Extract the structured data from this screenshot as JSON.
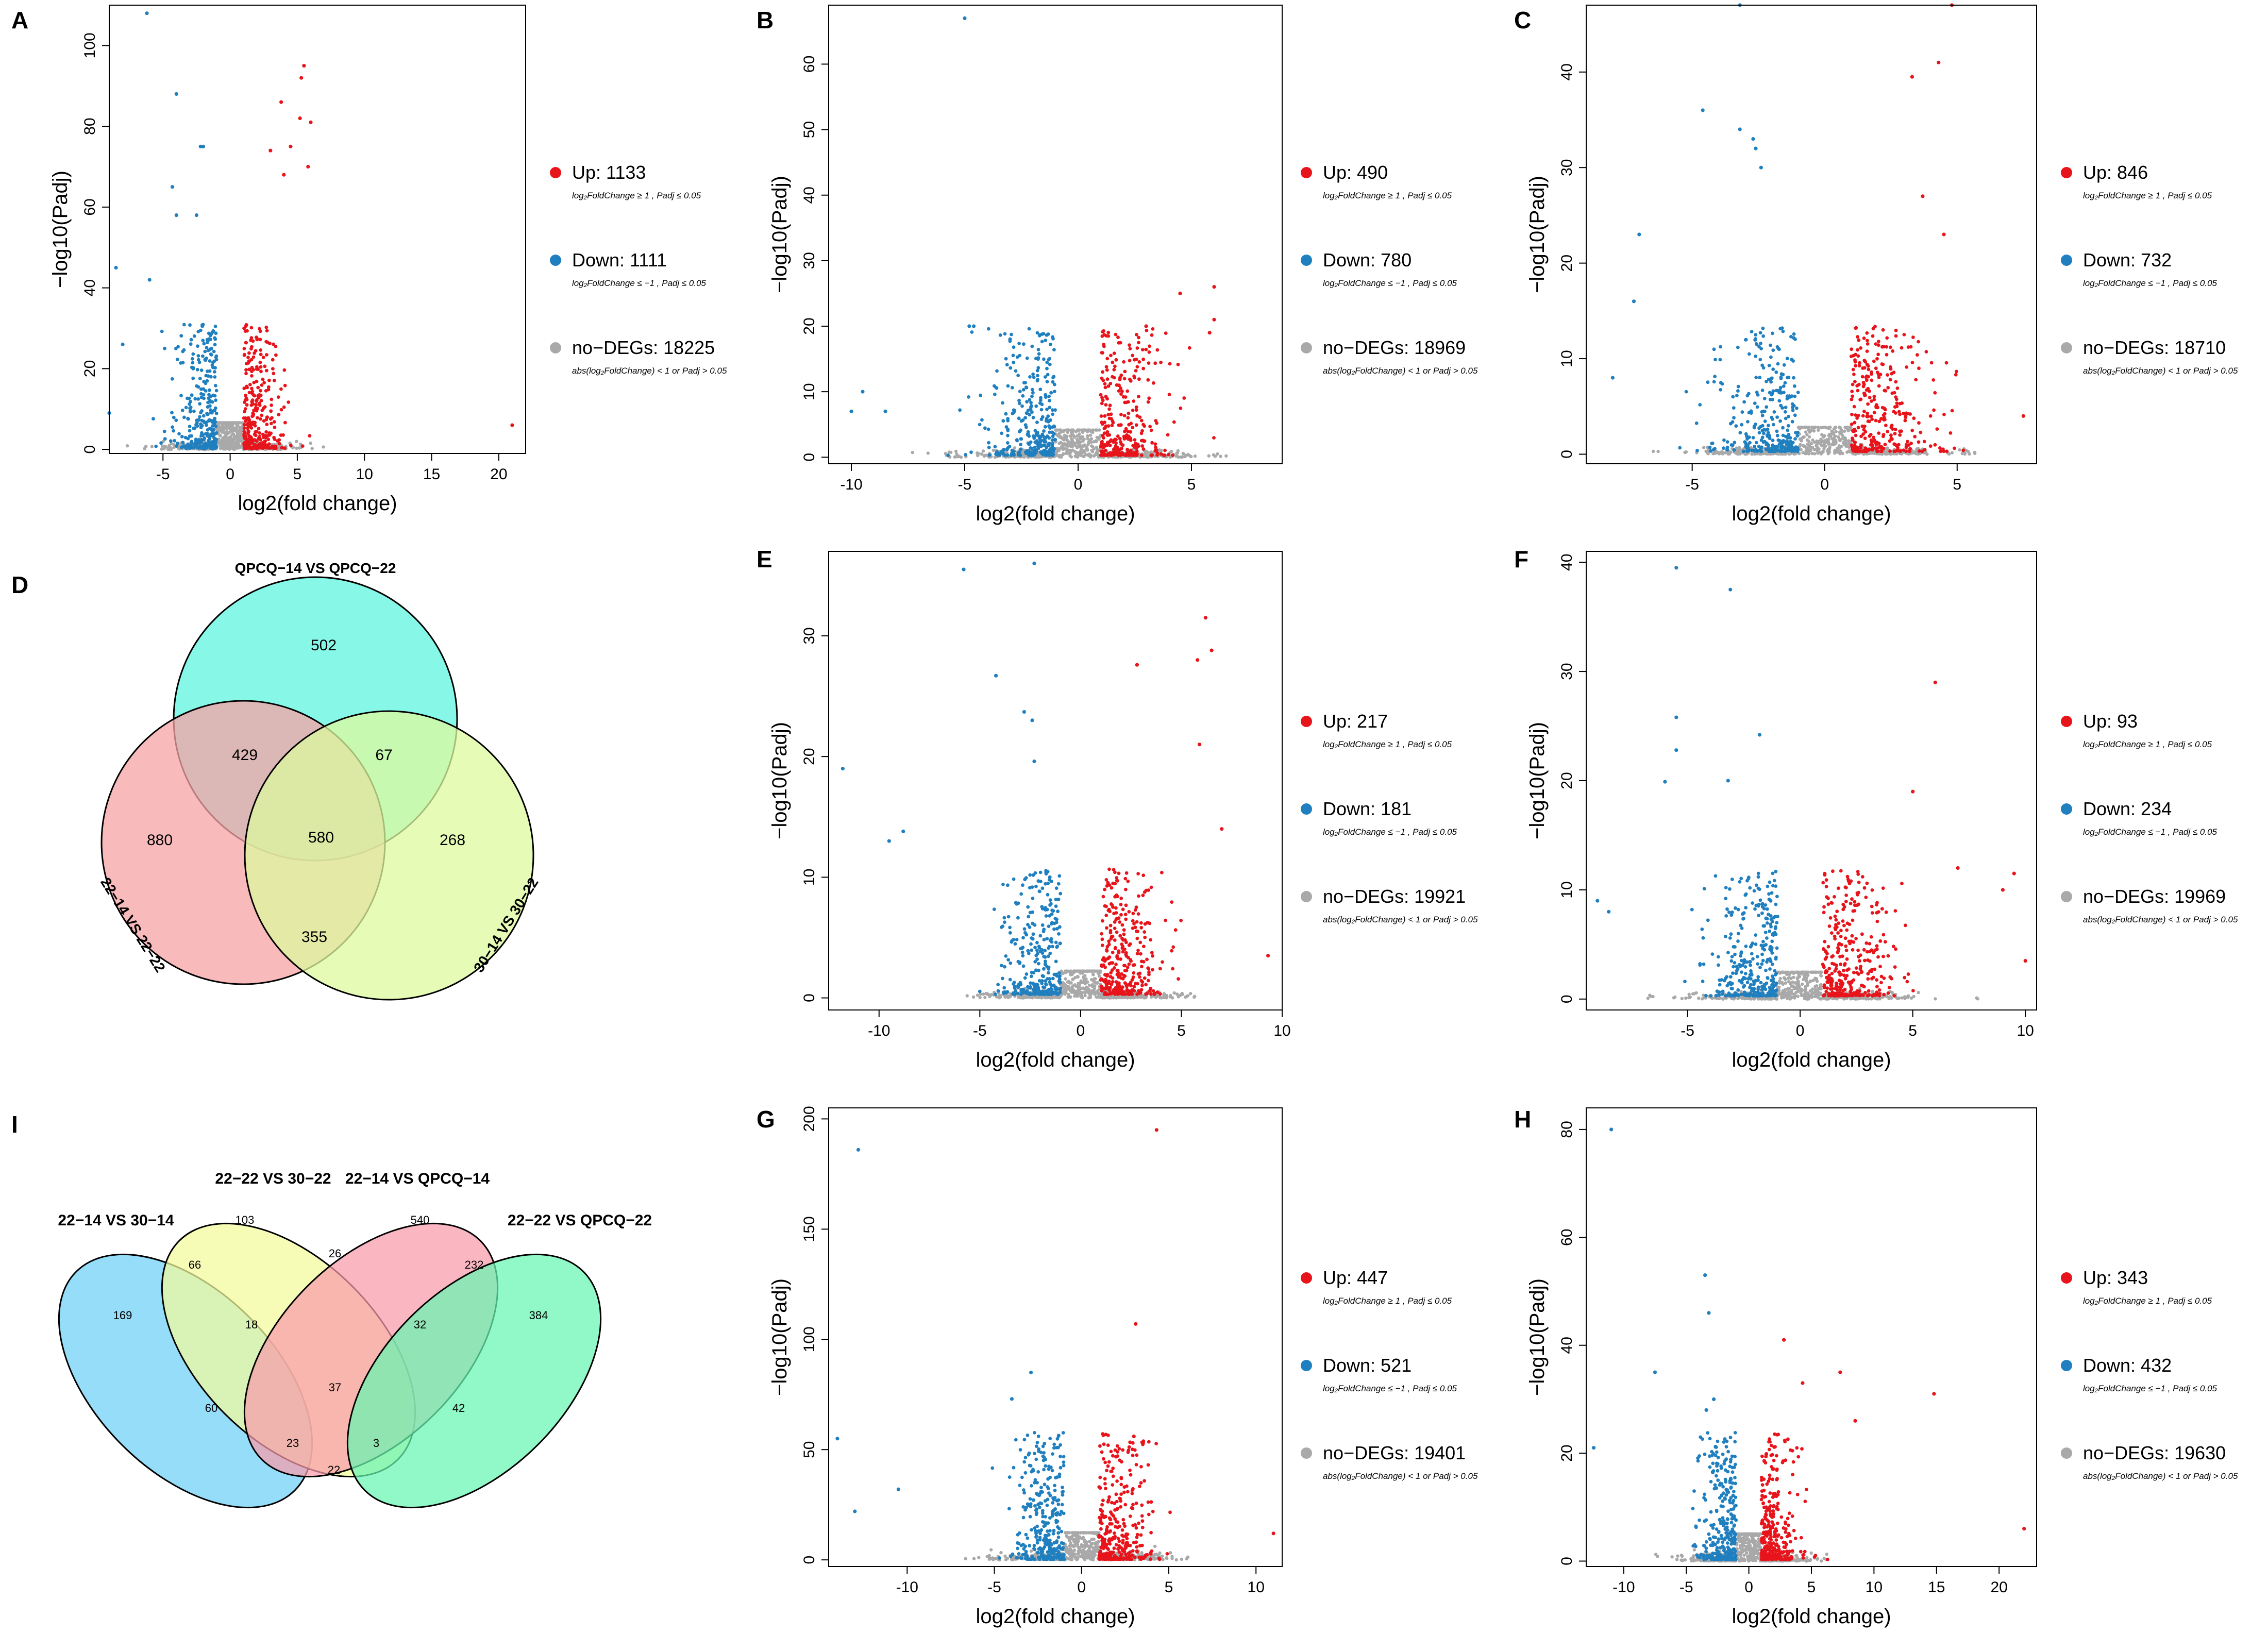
{
  "figure": {
    "colors": {
      "up": "#e8141b",
      "down": "#1f7fbf",
      "nodeg": "#a9a9a9"
    },
    "shared": {
      "xlabel": "log2(fold change)",
      "ylabel": "−log10(Padj)"
    },
    "panel_letters": {
      "A": "A",
      "B": "B",
      "C": "C",
      "D": "D",
      "E": "E",
      "F": "F",
      "G": "G",
      "H": "H",
      "I": "I"
    }
  },
  "chart_data": [
    {
      "id": "A",
      "type": "scatter",
      "subtype": "volcano",
      "xlabel": "log2(fold change)",
      "ylabel": "−log10(Padj)",
      "xlim": [
        -9,
        22
      ],
      "ylim": [
        -1,
        110
      ],
      "xticks": [
        -5,
        0,
        5,
        10,
        15,
        20
      ],
      "yticks": [
        0,
        20,
        40,
        60,
        80,
        100
      ],
      "tick_labels_x": [
        "-5",
        "0",
        "5",
        "10",
        "15",
        "20"
      ],
      "tick_labels_y": [
        "0",
        "20",
        "40",
        "60",
        "80",
        "100"
      ],
      "legend": [
        {
          "key": "up",
          "label": "Up: 1133",
          "rule": "log₂FoldChange ≥ 1 , Padj ≤ 0.05"
        },
        {
          "key": "down",
          "label": "Down: 1111",
          "rule": "log₂FoldChange ≤ −1 , Padj ≤ 0.05"
        },
        {
          "key": "nodeg",
          "label": "no−DEGs: 18225",
          "rule": "abs(log₂FoldChange) < 1  or Padj > 0.05"
        }
      ],
      "series": [
        {
          "name": "Up",
          "color_key": "up",
          "count": 1133
        },
        {
          "name": "Down",
          "color_key": "down",
          "count": 1111
        },
        {
          "name": "no-DEGs",
          "color_key": "nodeg",
          "count": 18225
        }
      ],
      "outliers": [
        [
          -6.2,
          108
        ],
        [
          -4,
          88
        ],
        [
          -2.2,
          75
        ],
        [
          -2,
          75
        ],
        [
          -4.3,
          65
        ],
        [
          -4,
          58
        ],
        [
          -2.5,
          58
        ],
        [
          -8.5,
          45
        ],
        [
          -6,
          42
        ],
        [
          5.5,
          95
        ],
        [
          5.3,
          92
        ],
        [
          3.8,
          86
        ],
        [
          5.2,
          82
        ],
        [
          6,
          81
        ],
        [
          4.5,
          75
        ],
        [
          3,
          74
        ],
        [
          5.8,
          70
        ],
        [
          4,
          68
        ],
        [
          21,
          6
        ],
        [
          -8,
          26
        ],
        [
          -9,
          9
        ]
      ]
    },
    {
      "id": "B",
      "type": "scatter",
      "subtype": "volcano",
      "xlabel": "log2(fold change)",
      "ylabel": "−log10(Padj)",
      "xlim": [
        -11,
        9
      ],
      "ylim": [
        -1,
        69
      ],
      "xticks": [
        -10,
        -5,
        0,
        5
      ],
      "yticks": [
        0,
        10,
        20,
        30,
        40,
        50,
        60
      ],
      "tick_labels_x": [
        "-10",
        "-5",
        "0",
        "5"
      ],
      "tick_labels_y": [
        "0",
        "10",
        "20",
        "30",
        "40",
        "50",
        "60"
      ],
      "legend": [
        {
          "key": "up",
          "label": "Up: 490",
          "rule": "log₂FoldChange ≥ 1 , Padj ≤ 0.05"
        },
        {
          "key": "down",
          "label": "Down: 780",
          "rule": "log₂FoldChange ≤ −1 , Padj ≤ 0.05"
        },
        {
          "key": "nodeg",
          "label": "no−DEGs: 18969",
          "rule": "abs(log₂FoldChange) < 1  or Padj > 0.05"
        }
      ],
      "series": [
        {
          "name": "Up",
          "color_key": "up",
          "count": 490
        },
        {
          "name": "Down",
          "color_key": "down",
          "count": 780
        },
        {
          "name": "no-DEGs",
          "color_key": "nodeg",
          "count": 18969
        }
      ],
      "outliers": [
        [
          -5,
          67
        ],
        [
          -4.8,
          20
        ],
        [
          -4.6,
          20
        ],
        [
          -9.5,
          10
        ],
        [
          -10,
          7
        ],
        [
          -8.5,
          7
        ],
        [
          6,
          26
        ],
        [
          4.5,
          25
        ],
        [
          6,
          21
        ],
        [
          5.8,
          19
        ],
        [
          3,
          20
        ],
        [
          -3,
          18
        ]
      ]
    },
    {
      "id": "C",
      "type": "scatter",
      "subtype": "volcano",
      "xlabel": "log2(fold change)",
      "ylabel": "−log10(Padj)",
      "xlim": [
        -9,
        8
      ],
      "ylim": [
        -1,
        47
      ],
      "xticks": [
        -5,
        0,
        5
      ],
      "yticks": [
        0,
        10,
        20,
        30,
        40
      ],
      "tick_labels_x": [
        "-5",
        "0",
        "5"
      ],
      "tick_labels_y": [
        "0",
        "10",
        "20",
        "30",
        "40"
      ],
      "legend": [
        {
          "key": "up",
          "label": "Up: 846",
          "rule": "log₂FoldChange ≥ 1 , Padj ≤ 0.05"
        },
        {
          "key": "down",
          "label": "Down: 732",
          "rule": "log₂FoldChange ≤ −1 , Padj ≤ 0.05"
        },
        {
          "key": "nodeg",
          "label": "no−DEGs: 18710",
          "rule": "abs(log₂FoldChange) < 1  or Padj > 0.05"
        }
      ],
      "series": [
        {
          "name": "Up",
          "color_key": "up",
          "count": 846
        },
        {
          "name": "Down",
          "color_key": "down",
          "count": 732
        },
        {
          "name": "no-DEGs",
          "color_key": "nodeg",
          "count": 18710
        }
      ],
      "outliers": [
        [
          -3.2,
          47
        ],
        [
          4.8,
          47
        ],
        [
          4.3,
          41
        ],
        [
          3.3,
          39.5
        ],
        [
          -4.6,
          36
        ],
        [
          -3.2,
          34
        ],
        [
          -2.7,
          33
        ],
        [
          -2.6,
          32
        ],
        [
          -2.4,
          30
        ],
        [
          -7,
          23
        ],
        [
          -7.2,
          16
        ],
        [
          -8,
          8
        ],
        [
          3.7,
          27
        ],
        [
          4.5,
          23
        ],
        [
          7.5,
          4
        ]
      ]
    },
    {
      "id": "E",
      "type": "scatter",
      "subtype": "volcano",
      "xlabel": "log2(fold change)",
      "ylabel": "−log10(Padj)",
      "xlim": [
        -12.5,
        10
      ],
      "ylim": [
        -1,
        37
      ],
      "xticks": [
        -10,
        -5,
        0,
        5,
        10
      ],
      "yticks": [
        0,
        10,
        20,
        30
      ],
      "tick_labels_x": [
        "-10",
        "-5",
        "0",
        "5",
        "10"
      ],
      "tick_labels_y": [
        "0",
        "10",
        "20",
        "30"
      ],
      "legend": [
        {
          "key": "up",
          "label": "Up: 217",
          "rule": "log₂FoldChange ≥ 1 , Padj ≤ 0.05"
        },
        {
          "key": "down",
          "label": "Down: 181",
          "rule": "log₂FoldChange ≤ −1 , Padj ≤ 0.05"
        },
        {
          "key": "nodeg",
          "label": "no−DEGs: 19921",
          "rule": "abs(log₂FoldChange) < 1  or Padj > 0.05"
        }
      ],
      "series": [
        {
          "name": "Up",
          "color_key": "up",
          "count": 217
        },
        {
          "name": "Down",
          "color_key": "down",
          "count": 181
        },
        {
          "name": "no-DEGs",
          "color_key": "nodeg",
          "count": 19921
        }
      ],
      "outliers": [
        [
          -5.8,
          35.5
        ],
        [
          -2.3,
          36
        ],
        [
          -4.2,
          26.7
        ],
        [
          -2.8,
          23.7
        ],
        [
          -2.4,
          23
        ],
        [
          -2.3,
          19.6
        ],
        [
          -11.8,
          19
        ],
        [
          -9.5,
          13
        ],
        [
          -8.8,
          13.8
        ],
        [
          6.2,
          31.5
        ],
        [
          6.5,
          28.8
        ],
        [
          2.8,
          27.6
        ],
        [
          5.8,
          28
        ],
        [
          5.9,
          21
        ],
        [
          7,
          14
        ],
        [
          9.3,
          3.5
        ]
      ]
    },
    {
      "id": "F",
      "type": "scatter",
      "subtype": "volcano",
      "xlabel": "log2(fold change)",
      "ylabel": "−log10(Padj)",
      "xlim": [
        -9.5,
        10.5
      ],
      "ylim": [
        -1,
        41
      ],
      "xticks": [
        -5,
        0,
        5,
        10
      ],
      "yticks": [
        0,
        10,
        20,
        30,
        40
      ],
      "tick_labels_x": [
        "-5",
        "0",
        "5",
        "10"
      ],
      "tick_labels_y": [
        "0",
        "10",
        "20",
        "30",
        "40"
      ],
      "legend": [
        {
          "key": "up",
          "label": "Up: 93",
          "rule": "log₂FoldChange ≥ 1 , Padj ≤ 0.05"
        },
        {
          "key": "down",
          "label": "Down: 234",
          "rule": "log₂FoldChange ≤ −1 , Padj ≤ 0.05"
        },
        {
          "key": "nodeg",
          "label": "no−DEGs: 19969",
          "rule": "abs(log₂FoldChange) < 1  or Padj > 0.05"
        }
      ],
      "series": [
        {
          "name": "Up",
          "color_key": "up",
          "count": 93
        },
        {
          "name": "Down",
          "color_key": "down",
          "count": 234
        },
        {
          "name": "no-DEGs",
          "color_key": "nodeg",
          "count": 19969
        }
      ],
      "outliers": [
        [
          -5.5,
          39.5
        ],
        [
          -3.1,
          37.5
        ],
        [
          -5.5,
          25.8
        ],
        [
          -5.5,
          22.8
        ],
        [
          -1.8,
          24.2
        ],
        [
          -6,
          19.9
        ],
        [
          -3.2,
          20
        ],
        [
          -9,
          9
        ],
        [
          -8.5,
          8
        ],
        [
          6,
          29
        ],
        [
          5,
          19
        ],
        [
          9.5,
          11.5
        ],
        [
          9,
          10
        ],
        [
          10,
          3.5
        ],
        [
          7,
          12
        ]
      ]
    },
    {
      "id": "G",
      "type": "scatter",
      "subtype": "volcano",
      "xlabel": "log2(fold change)",
      "ylabel": "−log10(Padj)",
      "xlim": [
        -14.5,
        11.5
      ],
      "ylim": [
        -3,
        205
      ],
      "xticks": [
        -10,
        -5,
        0,
        5,
        10
      ],
      "yticks": [
        0,
        50,
        100,
        150,
        200
      ],
      "tick_labels_x": [
        "-10",
        "-5",
        "0",
        "5",
        "10"
      ],
      "tick_labels_y": [
        "0",
        "50",
        "100",
        "150",
        "200"
      ],
      "legend": [
        {
          "key": "up",
          "label": "Up: 447",
          "rule": "log₂FoldChange ≥ 1 , Padj ≤ 0.05"
        },
        {
          "key": "down",
          "label": "Down: 521",
          "rule": "log₂FoldChange ≤ −1 , Padj ≤ 0.05"
        },
        {
          "key": "nodeg",
          "label": "no−DEGs: 19401",
          "rule": "abs(log₂FoldChange) < 1  or Padj > 0.05"
        }
      ],
      "series": [
        {
          "name": "Up",
          "color_key": "up",
          "count": 447
        },
        {
          "name": "Down",
          "color_key": "down",
          "count": 521
        },
        {
          "name": "no-DEGs",
          "color_key": "nodeg",
          "count": 19401
        }
      ],
      "outliers": [
        [
          4.3,
          195
        ],
        [
          -12.8,
          186
        ],
        [
          3.1,
          107
        ],
        [
          -2.9,
          85
        ],
        [
          -4,
          73
        ],
        [
          -14,
          55
        ],
        [
          -13,
          22
        ],
        [
          -10.5,
          32
        ],
        [
          3,
          56
        ],
        [
          11,
          12
        ]
      ]
    },
    {
      "id": "H",
      "type": "scatter",
      "subtype": "volcano",
      "xlabel": "log2(fold change)",
      "ylabel": "−log10(Padj)",
      "xlim": [
        -13,
        23
      ],
      "ylim": [
        -1,
        84
      ],
      "xticks": [
        -10,
        -5,
        0,
        5,
        10,
        15,
        20
      ],
      "yticks": [
        0,
        20,
        40,
        60,
        80
      ],
      "tick_labels_x": [
        "-10",
        "-5",
        "0",
        "5",
        "10",
        "15",
        "20"
      ],
      "tick_labels_y": [
        "0",
        "20",
        "40",
        "60",
        "80"
      ],
      "legend": [
        {
          "key": "up",
          "label": "Up: 343",
          "rule": "log₂FoldChange ≥ 1 , Padj ≤ 0.05"
        },
        {
          "key": "down",
          "label": "Down: 432",
          "rule": "log₂FoldChange ≤ −1 , Padj ≤ 0.05"
        },
        {
          "key": "nodeg",
          "label": "no−DEGs: 19630",
          "rule": "abs(log₂FoldChange) < 1  or Padj > 0.05"
        }
      ],
      "series": [
        {
          "name": "Up",
          "color_key": "up",
          "count": 343
        },
        {
          "name": "Down",
          "color_key": "down",
          "count": 432
        },
        {
          "name": "no-DEGs",
          "color_key": "nodeg",
          "count": 19630
        }
      ],
      "outliers": [
        [
          -11,
          80
        ],
        [
          -3.5,
          53
        ],
        [
          -3.2,
          46
        ],
        [
          -2.8,
          30
        ],
        [
          -3.4,
          28
        ],
        [
          -7.5,
          35
        ],
        [
          -12.4,
          21
        ],
        [
          2.8,
          41
        ],
        [
          4.3,
          33
        ],
        [
          7.3,
          35
        ],
        [
          14.8,
          31
        ],
        [
          8.5,
          26
        ],
        [
          22,
          6
        ]
      ]
    },
    {
      "id": "D",
      "type": "venn",
      "sets": 3,
      "set_labels": [
        "QPCQ−14 VS QPCQ−22",
        "22−14 VS 22−22",
        "30−14 VS 30−22"
      ],
      "regions": [
        {
          "key": "top_only",
          "value": 502
        },
        {
          "key": "top_left",
          "value": 429
        },
        {
          "key": "top_right",
          "value": 67
        },
        {
          "key": "all",
          "value": 580
        },
        {
          "key": "left_only",
          "value": 880
        },
        {
          "key": "right_only",
          "value": 268
        },
        {
          "key": "left_right",
          "value": 355
        }
      ],
      "colors": [
        "#5ff5df",
        "#f7a3a5",
        "#dcf99e"
      ]
    },
    {
      "id": "I",
      "type": "venn",
      "sets": 4,
      "set_labels": [
        "22−14 VS 30−14",
        "22−22 VS 30−22",
        "22−14 VS QPCQ−14",
        "22−22 VS QPCQ−22"
      ],
      "regions": [
        {
          "key": "a",
          "value": 169
        },
        {
          "key": "b",
          "value": 103
        },
        {
          "key": "c",
          "value": 540
        },
        {
          "key": "d",
          "value": 384
        },
        {
          "key": "ab",
          "value": 66
        },
        {
          "key": "bc",
          "value": 26
        },
        {
          "key": "cd",
          "value": 232
        },
        {
          "key": "abc",
          "value": 18
        },
        {
          "key": "bcd",
          "value": 32
        },
        {
          "key": "ac",
          "value": 60
        },
        {
          "key": "abcd",
          "value": 37
        },
        {
          "key": "bd",
          "value": 42
        },
        {
          "key": "acd",
          "value": 23
        },
        {
          "key": "abd",
          "value": 3
        },
        {
          "key": "ad",
          "value": 22
        }
      ],
      "colors": [
        "#6cd0f7",
        "#f3fb9a",
        "#f89bab",
        "#67f5b1"
      ]
    }
  ]
}
